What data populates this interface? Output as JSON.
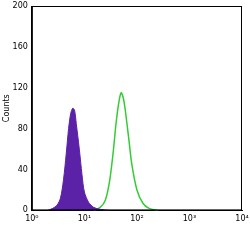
{
  "chart_data": {
    "type": "line",
    "y_label": "Counts",
    "log": "x",
    "grid": false,
    "xlim": [
      1,
      10000
    ],
    "xticks": [
      {
        "value": 1,
        "label": "10⁰"
      },
      {
        "value": 10,
        "label": "10¹"
      },
      {
        "value": 100,
        "label": "10²"
      },
      {
        "value": 1000,
        "label": "10³"
      },
      {
        "value": 10000,
        "label": "10⁴"
      }
    ],
    "ylim": [
      0,
      200
    ],
    "yticks": [
      0,
      40,
      80,
      120,
      160,
      200
    ],
    "series": [
      {
        "type": "area",
        "color": "#5b22a8",
        "x": [
          2,
          2.5,
          3,
          3.5,
          4,
          4.5,
          5,
          5.5,
          6,
          6.5,
          7,
          8,
          9,
          10,
          12,
          15,
          20,
          30
        ],
        "values": [
          0,
          2,
          5,
          12,
          30,
          55,
          80,
          95,
          100,
          98,
          85,
          60,
          35,
          18,
          8,
          3,
          1,
          0
        ]
      },
      {
        "type": "line",
        "color": "#33cc33",
        "x": [
          15,
          20,
          25,
          30,
          35,
          40,
          45,
          50,
          55,
          60,
          70,
          80,
          100,
          130,
          170,
          250
        ],
        "values": [
          0,
          3,
          10,
          28,
          55,
          85,
          105,
          115,
          110,
          98,
          70,
          45,
          20,
          7,
          2,
          0
        ]
      }
    ]
  }
}
